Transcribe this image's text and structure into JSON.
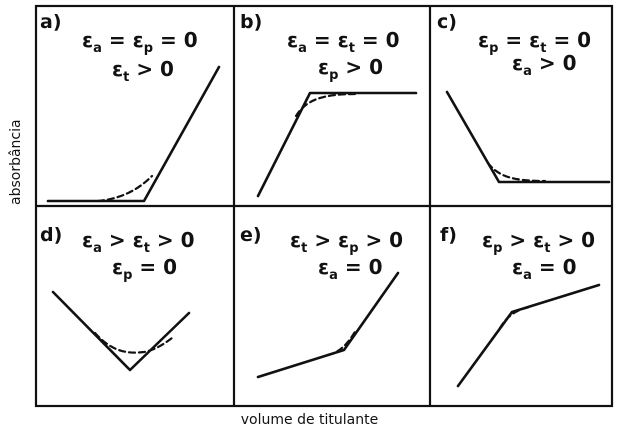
{
  "axes": {
    "y_label": "absorbância",
    "x_label": "volume de titulante"
  },
  "panels": [
    {
      "tag": "a)",
      "line1": [
        [
          "ε",
          "a"
        ],
        [
          " = ",
          "",
          ""
        ],
        [
          "ε",
          "p"
        ],
        [
          " = 0"
        ]
      ],
      "line2": [
        [
          "ε",
          "t"
        ],
        [
          " > 0"
        ]
      ]
    },
    {
      "tag": "b)",
      "line1": [
        [
          "ε",
          "a"
        ],
        [
          " = ",
          ""
        ],
        [
          "ε",
          "t"
        ],
        [
          " = 0"
        ]
      ],
      "line2": [
        [
          "ε",
          "p"
        ],
        [
          " > 0"
        ]
      ]
    },
    {
      "tag": "c)",
      "line1": [
        [
          "ε",
          "p"
        ],
        [
          " = ",
          ""
        ],
        [
          "ε",
          "t"
        ],
        [
          " = 0"
        ]
      ],
      "line2": [
        [
          "ε",
          "a"
        ],
        [
          " > 0"
        ]
      ]
    },
    {
      "tag": "d)",
      "line1": [
        [
          "ε",
          "a"
        ],
        [
          " > ",
          ""
        ],
        [
          "ε",
          "t"
        ],
        [
          " > 0"
        ]
      ],
      "line2": [
        [
          "ε",
          "p"
        ],
        [
          " = 0"
        ]
      ]
    },
    {
      "tag": "e)",
      "line1": [
        [
          "ε",
          "t"
        ],
        [
          " > ",
          ""
        ],
        [
          "ε",
          "p"
        ],
        [
          " > 0"
        ]
      ],
      "line2": [
        [
          "ε",
          "a"
        ],
        [
          " = 0"
        ]
      ]
    },
    {
      "tag": "f)",
      "line1": [
        [
          "ε",
          "p"
        ],
        [
          " > ",
          ""
        ],
        [
          "ε",
          "t"
        ],
        [
          " > 0"
        ]
      ],
      "line2": [
        [
          "ε",
          "a"
        ],
        [
          " = 0"
        ]
      ]
    }
  ]
}
